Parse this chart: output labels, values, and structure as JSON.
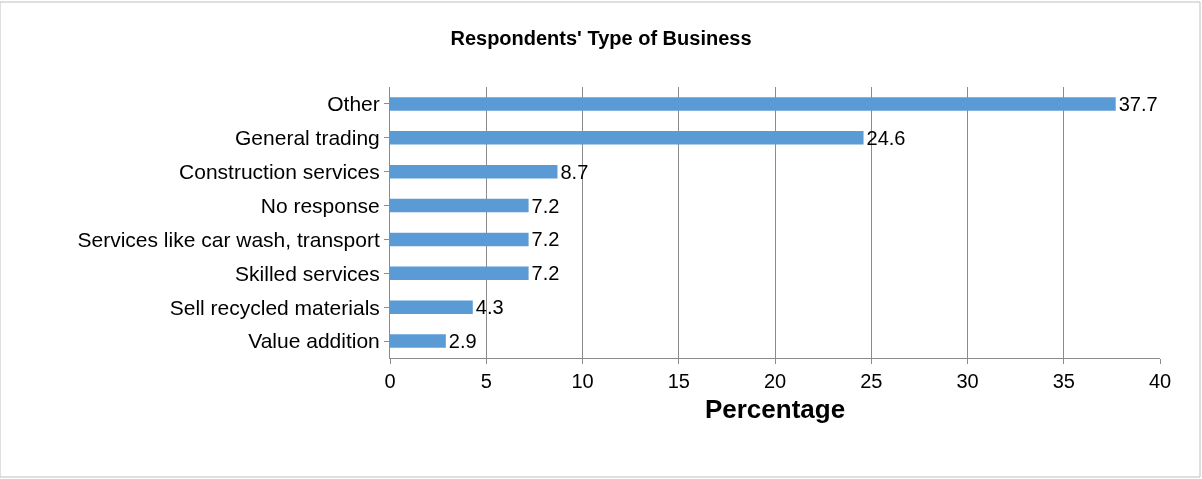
{
  "chart_data": {
    "type": "bar",
    "orientation": "horizontal",
    "title": "Respondents' Type of Business",
    "xlabel": "Percentage",
    "categories": [
      "Other",
      "General trading",
      "Construction services",
      "No response",
      "Services like car wash, transport",
      "Skilled services",
      "Sell recycled materials",
      "Value addition"
    ],
    "values": [
      37.7,
      24.6,
      8.7,
      7.2,
      7.2,
      7.2,
      4.3,
      2.9
    ],
    "color": "#5b9bd5",
    "xlim": [
      0,
      40
    ],
    "xticks": [
      0,
      5,
      10,
      15,
      20,
      25,
      30,
      35,
      40
    ],
    "grid": "x",
    "data_labels": true
  }
}
